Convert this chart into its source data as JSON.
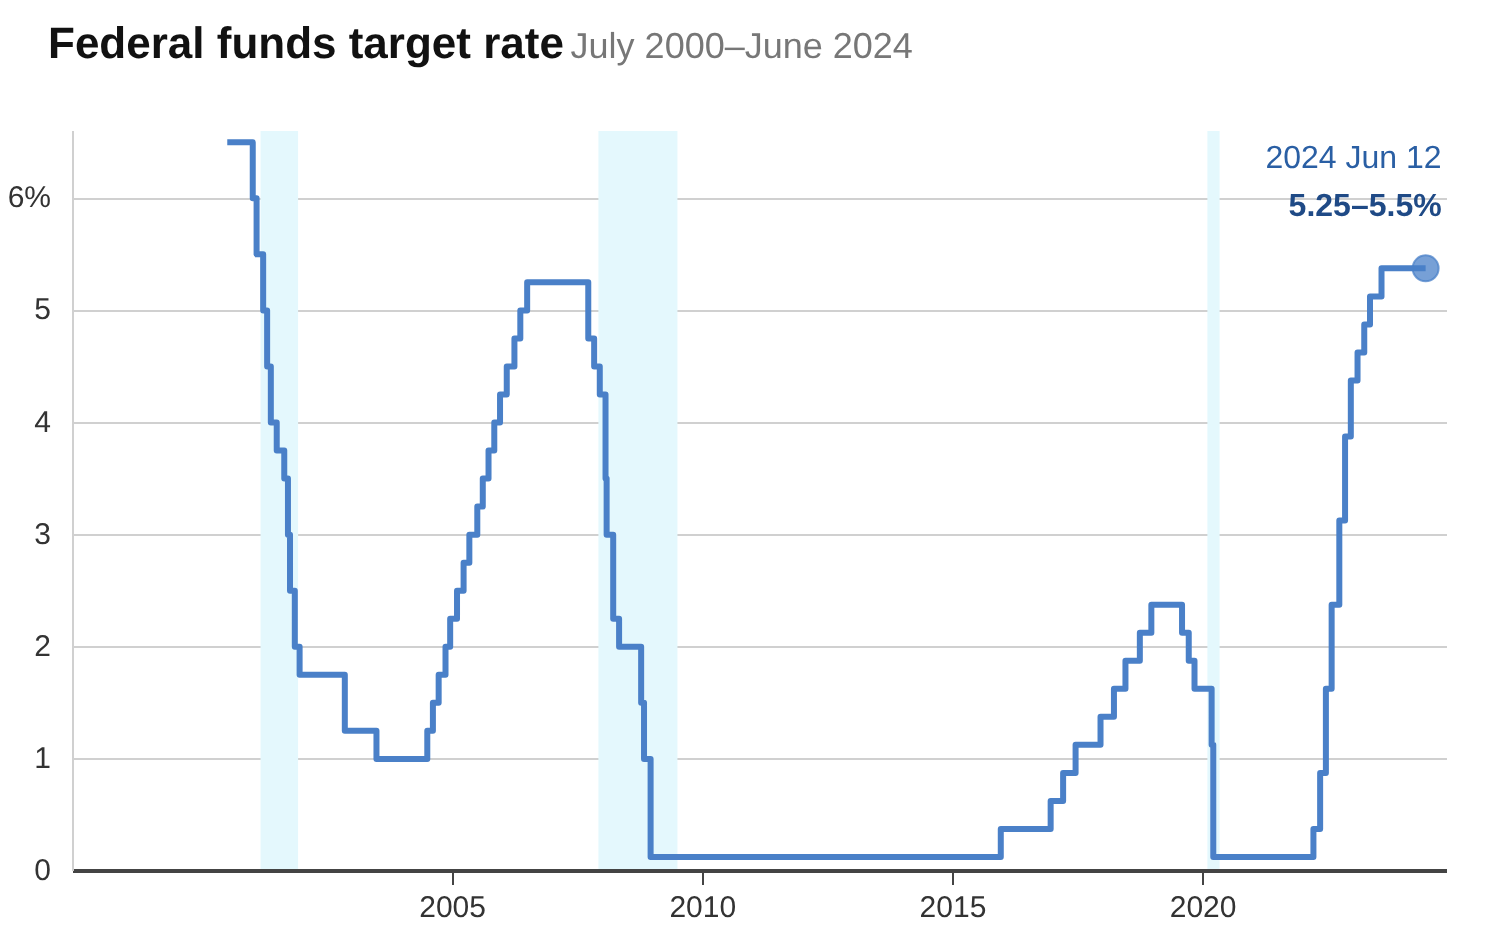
{
  "chart_data": {
    "type": "step",
    "title": "Federal funds target rate",
    "subtitle": "July 2000–June 2024",
    "x": [
      "2000-07-01",
      "2001-01-03",
      "2001-01-31",
      "2001-03-20",
      "2001-04-18",
      "2001-05-15",
      "2001-06-27",
      "2001-08-21",
      "2001-09-17",
      "2001-10-02",
      "2001-11-06",
      "2001-12-11",
      "2002-11-06",
      "2003-06-25",
      "2004-06-30",
      "2004-08-10",
      "2004-09-21",
      "2004-11-10",
      "2004-12-14",
      "2005-02-02",
      "2005-03-22",
      "2005-05-03",
      "2005-06-30",
      "2005-08-09",
      "2005-09-20",
      "2005-11-01",
      "2005-12-13",
      "2006-01-31",
      "2006-03-28",
      "2006-05-10",
      "2006-06-29",
      "2007-09-18",
      "2007-10-31",
      "2007-12-11",
      "2008-01-22",
      "2008-01-30",
      "2008-03-18",
      "2008-04-30",
      "2008-10-08",
      "2008-10-29",
      "2008-12-16",
      "2015-12-16",
      "2016-12-14",
      "2017-03-15",
      "2017-06-14",
      "2017-12-13",
      "2018-03-21",
      "2018-06-13",
      "2018-09-26",
      "2018-12-19",
      "2019-07-31",
      "2019-09-18",
      "2019-10-30",
      "2020-03-03",
      "2020-03-15",
      "2022-03-16",
      "2022-05-04",
      "2022-06-15",
      "2022-07-27",
      "2022-09-21",
      "2022-11-02",
      "2022-12-14",
      "2023-02-01",
      "2023-03-22",
      "2023-05-03",
      "2023-07-26",
      "2024-06-12"
    ],
    "series": [
      {
        "color": "#4a80c8",
        "values": [
          6.5,
          6.0,
          5.5,
          5.0,
          4.5,
          4.0,
          3.75,
          3.5,
          3.0,
          2.5,
          2.0,
          1.75,
          1.25,
          1.0,
          1.25,
          1.5,
          1.75,
          2.0,
          2.25,
          2.5,
          2.75,
          3.0,
          3.25,
          3.5,
          3.75,
          4.0,
          4.25,
          4.5,
          4.75,
          5.0,
          5.25,
          4.75,
          4.5,
          4.25,
          3.5,
          3.0,
          2.25,
          2.0,
          1.5,
          1.0,
          0.125,
          0.375,
          0.625,
          0.875,
          1.125,
          1.375,
          1.625,
          1.875,
          2.125,
          2.375,
          2.125,
          1.875,
          1.625,
          1.125,
          0.125,
          0.375,
          0.875,
          1.625,
          2.375,
          3.125,
          3.875,
          4.375,
          4.625,
          4.875,
          5.125,
          5.375,
          5.375
        ]
      }
    ],
    "xlim": [
      "1997-06-01",
      "2024-11-15"
    ],
    "xticks": [
      "2005",
      "2010",
      "2015",
      "2020"
    ],
    "ylim": [
      0,
      6.6
    ],
    "yticks": [
      0,
      1,
      2,
      3,
      4,
      5,
      {
        "value": 6,
        "label": "6%"
      }
    ],
    "grid": "y",
    "marker": "none",
    "line_style": "solid",
    "bands": [
      {
        "axis": "x",
        "from": "2001-03-01",
        "to": "2001-11-30",
        "color": "#e4f8fd"
      },
      {
        "axis": "x",
        "from": "2007-12-01",
        "to": "2009-06-30",
        "color": "#e4f8fd"
      },
      {
        "axis": "x",
        "from": "2020-02-01",
        "to": "2020-04-30",
        "color": "#e4f8fd"
      }
    ],
    "annotations": [
      "2024 Jun 12",
      {
        "text": "5.25–5.5%",
        "x": "2024-06-12",
        "y": 5.375
      }
    ]
  }
}
